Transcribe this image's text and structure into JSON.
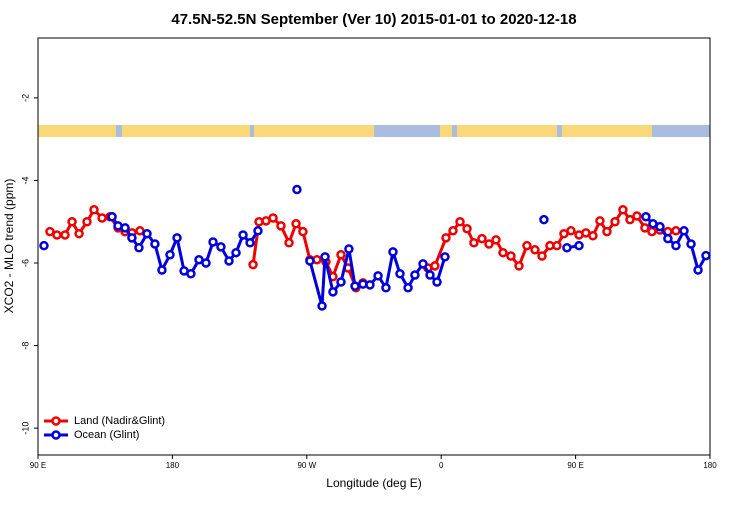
{
  "chart_data": {
    "type": "line",
    "title": "47.5N-52.5N September (Ver 10)   2015-01-01 to 2020-12-18",
    "x_label": "Longitude (deg E)",
    "y_label": "XCO2 - MLO trend (ppm)",
    "xlim": [
      90,
      540
    ],
    "xticks": [
      {
        "value": 90,
        "label": "90 E"
      },
      180,
      {
        "value": 270,
        "label": "90 W"
      },
      {
        "value": 360,
        "label": "0"
      },
      {
        "value": 450,
        "label": "90 E"
      },
      {
        "value": 540,
        "label": "180"
      }
    ],
    "ylim": [
      -10.65,
      -0.55
    ],
    "yticks": [
      -2,
      -4,
      -6,
      -8,
      -10
    ],
    "legend": "lower left",
    "series": [
      {
        "name": "Land (Nadir&Glint)",
        "color": "#ee0000",
        "x": [
          98.0,
          102.7,
          108.1,
          112.8,
          117.5,
          122.8,
          127.5,
          132.9,
          138.2,
          143.6,
          148.3,
          152.9,
          158.3,
          null,
          234.0,
          238.0,
          242.7,
          247.4,
          252.7,
          258.1,
          262.8,
          267.4,
          272.1,
          276.8,
          282.8,
          287.5,
          292.9,
          297.6,
          302.9,
          307.6,
          null,
          351.1,
          355.8,
          363.2,
          367.9,
          372.6,
          377.3,
          381.9,
          387.3,
          392.0,
          396.7,
          401.4,
          406.7,
          412.1,
          417.4,
          422.8,
          427.5,
          432.8,
          437.5,
          442.2,
          446.9,
          452.3,
          456.9,
          461.6,
          466.3,
          471.0,
          476.4,
          481.7,
          486.4,
          491.1,
          496.4,
          501.1,
          506.5,
          511.8,
          517.2
        ],
        "values": [
          -5.24,
          -5.32,
          -5.32,
          -5.0,
          -5.29,
          -5.0,
          -4.71,
          -4.91,
          -4.88,
          -5.15,
          -5.24,
          -5.27,
          -5.22,
          null,
          -6.04,
          -5.0,
          -4.98,
          -4.91,
          -5.1,
          -5.51,
          -5.05,
          -5.24,
          -5.92,
          -5.92,
          -5.97,
          -6.33,
          -5.8,
          -6.12,
          -6.6,
          -6.48,
          null,
          -6.12,
          -6.07,
          -5.39,
          -5.22,
          -5.0,
          -5.17,
          -5.51,
          -5.41,
          -5.54,
          -5.44,
          -5.75,
          -5.83,
          -6.07,
          -5.58,
          -5.68,
          -5.83,
          -5.58,
          -5.58,
          -5.29,
          -5.22,
          -5.32,
          -5.27,
          -5.34,
          -4.98,
          -5.24,
          -5.0,
          -4.71,
          -4.95,
          -4.86,
          -5.15,
          -5.24,
          -5.2,
          -5.24,
          -5.22
        ]
      },
      {
        "name": "Ocean (Glint)",
        "color": "#0000dd",
        "x": [
          94.0,
          null,
          139.6,
          143.6,
          148.3,
          152.9,
          157.6,
          163.0,
          168.3,
          173.0,
          178.4,
          183.1,
          187.8,
          192.4,
          197.8,
          202.5,
          207.2,
          212.5,
          217.9,
          222.6,
          227.3,
          232.0,
          237.3,
          null,
          263.4,
          null,
          272.1,
          280.2,
          282.2,
          287.5,
          292.9,
          298.2,
          302.3,
          307.6,
          312.3,
          317.7,
          323.0,
          327.7,
          332.4,
          337.8,
          342.4,
          347.8,
          352.5,
          357.2,
          362.5,
          null,
          428.8,
          null,
          444.2,
          452.3,
          null,
          497.1,
          501.8,
          506.5,
          511.8,
          517.2,
          522.6,
          527.3,
          532.0,
          537.3
        ],
        "values": [
          -5.58,
          null,
          -4.88,
          -5.1,
          -5.15,
          -5.39,
          -5.63,
          -5.29,
          -5.54,
          -6.17,
          -5.8,
          -5.39,
          -6.19,
          -6.26,
          -5.92,
          -6.0,
          -5.49,
          -5.61,
          -5.95,
          -5.75,
          -5.32,
          -5.51,
          -5.22,
          null,
          -4.22,
          null,
          -5.95,
          -7.04,
          -5.85,
          -6.7,
          -6.46,
          -5.66,
          -6.56,
          -6.51,
          -6.53,
          -6.31,
          -6.6,
          -5.73,
          -6.26,
          -6.6,
          -6.29,
          -6.02,
          -6.29,
          -6.46,
          -5.85,
          null,
          -4.95,
          null,
          -5.63,
          -5.58,
          null,
          -4.88,
          -5.05,
          -5.12,
          -5.41,
          -5.58,
          -5.22,
          -5.54,
          -6.17,
          -5.82
        ]
      }
    ]
  }
}
